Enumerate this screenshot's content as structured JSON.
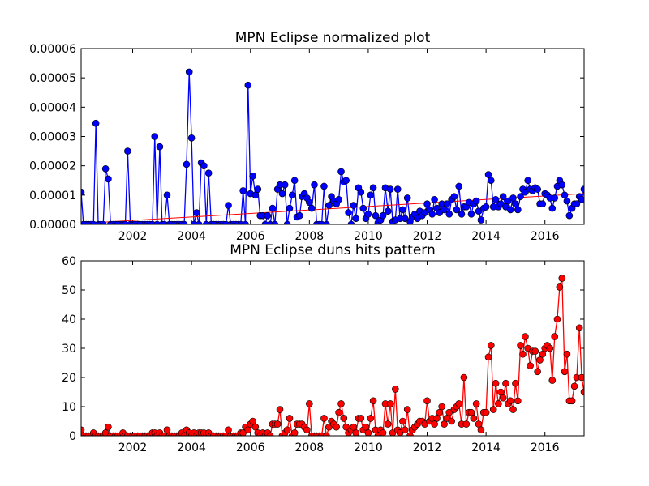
{
  "chart_data": [
    {
      "type": "line",
      "title": "MPN Eclipse normalized plot",
      "xlim": [
        2000.25,
        2017.33
      ],
      "xticks": [
        2002,
        2004,
        2006,
        2008,
        2010,
        2012,
        2014,
        2016
      ],
      "ylim": [
        0,
        6e-05
      ],
      "yticks": [
        {
          "value": 0,
          "label": "0.00000"
        },
        {
          "value": 1e-05,
          "label": "0.00001"
        },
        {
          "value": 2e-05,
          "label": "0.00002"
        },
        {
          "value": 3e-05,
          "label": "0.00003"
        },
        {
          "value": 4e-05,
          "label": "0.00004"
        },
        {
          "value": 5e-05,
          "label": "0.00005"
        },
        {
          "value": 6e-05,
          "label": "0.00006"
        }
      ],
      "x": [
        2000.25,
        2000.33,
        2000.42,
        2000.5,
        2000.58,
        2000.67,
        2000.75,
        2000.83,
        2000.92,
        2001,
        2001.08,
        2001.17,
        2001.25,
        2001.33,
        2001.42,
        2001.5,
        2001.58,
        2001.67,
        2001.75,
        2001.83,
        2001.92,
        2002,
        2002.08,
        2002.17,
        2002.25,
        2002.33,
        2002.42,
        2002.5,
        2002.58,
        2002.67,
        2002.75,
        2002.83,
        2002.92,
        2003,
        2003.08,
        2003.17,
        2003.25,
        2003.33,
        2003.42,
        2003.5,
        2003.58,
        2003.67,
        2003.75,
        2003.83,
        2003.92,
        2004,
        2004.08,
        2004.17,
        2004.25,
        2004.33,
        2004.42,
        2004.5,
        2004.58,
        2004.67,
        2004.75,
        2004.83,
        2004.92,
        2005,
        2005.08,
        2005.17,
        2005.25,
        2005.33,
        2005.42,
        2005.5,
        2005.58,
        2005.67,
        2005.75,
        2005.83,
        2005.92,
        2006,
        2006.08,
        2006.17,
        2006.25,
        2006.33,
        2006.42,
        2006.5,
        2006.58,
        2006.67,
        2006.75,
        2006.83,
        2006.92,
        2007,
        2007.08,
        2007.17,
        2007.25,
        2007.33,
        2007.42,
        2007.5,
        2007.58,
        2007.67,
        2007.75,
        2007.83,
        2007.92,
        2008,
        2008.08,
        2008.17,
        2008.25,
        2008.33,
        2008.42,
        2008.5,
        2008.58,
        2008.67,
        2008.75,
        2008.83,
        2008.92,
        2009,
        2009.08,
        2009.17,
        2009.25,
        2009.33,
        2009.42,
        2009.5,
        2009.58,
        2009.67,
        2009.75,
        2009.83,
        2009.92,
        2010,
        2010.08,
        2010.17,
        2010.25,
        2010.33,
        2010.42,
        2010.5,
        2010.58,
        2010.67,
        2010.75,
        2010.83,
        2010.92,
        2011,
        2011.08,
        2011.17,
        2011.25,
        2011.33,
        2011.42,
        2011.5,
        2011.58,
        2011.67,
        2011.75,
        2011.83,
        2011.92,
        2012,
        2012.08,
        2012.17,
        2012.25,
        2012.33,
        2012.42,
        2012.5,
        2012.58,
        2012.67,
        2012.75,
        2012.83,
        2012.92,
        2013,
        2013.08,
        2013.17,
        2013.25,
        2013.33,
        2013.42,
        2013.5,
        2013.58,
        2013.67,
        2013.75,
        2013.83,
        2013.92,
        2014,
        2014.08,
        2014.17,
        2014.25,
        2014.33,
        2014.42,
        2014.5,
        2014.58,
        2014.67,
        2014.75,
        2014.83,
        2014.92,
        2015,
        2015.08,
        2015.17,
        2015.25,
        2015.33,
        2015.42,
        2015.5,
        2015.58,
        2015.67,
        2015.75,
        2015.83,
        2015.92,
        2016,
        2016.08,
        2016.17,
        2016.25,
        2016.33,
        2016.42,
        2016.5,
        2016.58,
        2016.67,
        2016.75,
        2016.83,
        2016.92,
        2017,
        2017.08,
        2017.17,
        2017.25,
        2017.33
      ],
      "series": [
        {
          "color": "#0000ff",
          "values": [
            1.1e-05,
            0,
            0,
            0,
            0,
            0,
            3.45e-05,
            0,
            0,
            0,
            1.9e-05,
            1.55e-05,
            0,
            0,
            0,
            0,
            0,
            0,
            0,
            2.5e-05,
            0,
            0,
            0,
            0,
            0,
            0,
            0,
            0,
            0,
            0,
            3e-05,
            0,
            2.65e-05,
            0,
            0,
            1e-05,
            0,
            0,
            0,
            0,
            0,
            0,
            0,
            2.05e-05,
            5.2e-05,
            2.95e-05,
            0,
            4e-06,
            0,
            2.1e-05,
            2e-05,
            0,
            1.75e-05,
            0,
            0,
            0,
            0,
            0,
            0,
            0,
            6.5e-06,
            0,
            0,
            0,
            0,
            0,
            1.15e-05,
            0,
            4.75e-05,
            1.05e-05,
            1.65e-05,
            1e-05,
            1.2e-05,
            3e-06,
            3e-06,
            0,
            3e-06,
            0,
            5.5e-06,
            0,
            1.2e-05,
            1.35e-05,
            1.05e-05,
            1.35e-05,
            0,
            5.5e-06,
            1e-05,
            1.5e-05,
            2.5e-06,
            3e-06,
            9.5e-06,
            1.05e-05,
            9e-06,
            7.5e-06,
            5.5e-06,
            1.35e-05,
            0,
            0,
            0,
            1.3e-05,
            0,
            6.5e-06,
            9.5e-06,
            8e-06,
            7e-06,
            8.5e-06,
            1.8e-05,
            1.45e-05,
            1.5e-05,
            4e-06,
            0,
            6.5e-06,
            2e-06,
            1.25e-05,
            1.1e-05,
            5.5e-06,
            2e-06,
            3.5e-06,
            1e-05,
            1.25e-05,
            3e-06,
            5e-07,
            1.5e-06,
            3e-06,
            1.25e-05,
            4.5e-06,
            1.2e-05,
            1e-06,
            1.5e-06,
            1.2e-05,
            2e-06,
            5e-06,
            2e-06,
            9e-06,
            1e-06,
            2.5e-06,
            3.5e-06,
            2e-06,
            4.5e-06,
            3e-06,
            4e-06,
            7e-06,
            5e-06,
            3.5e-06,
            8.5e-06,
            5.5e-06,
            4e-06,
            7e-06,
            5e-06,
            7e-06,
            3.5e-06,
            8.5e-06,
            9.5e-06,
            5e-06,
            1.3e-05,
            3.5e-06,
            6e-06,
            6e-06,
            7.5e-06,
            3.5e-06,
            7e-06,
            8e-06,
            4.5e-06,
            1.5e-06,
            5.5e-06,
            6e-06,
            1.7e-05,
            1.5e-05,
            6e-06,
            8.5e-06,
            6e-06,
            7e-06,
            9.5e-06,
            6e-06,
            8e-06,
            5e-06,
            9e-06,
            7e-06,
            5e-06,
            9.5e-06,
            1.2e-05,
            1.1e-05,
            1.5e-05,
            1.2e-05,
            1.15e-05,
            1.25e-05,
            1.2e-05,
            7e-06,
            7e-06,
            1.05e-05,
            1e-05,
            9e-06,
            5.5e-06,
            9e-06,
            1.3e-05,
            1.5e-05,
            1.35e-05,
            1e-05,
            8e-06,
            3e-06,
            5.5e-06,
            7e-06,
            7e-06,
            9.5e-06,
            8.5e-06,
            1.2e-05
          ]
        }
      ],
      "trend": {
        "color": "#ff0000",
        "x": [
          2000.25,
          2017.33
        ],
        "values": [
          3e-07,
          1.05e-05
        ]
      }
    },
    {
      "type": "line",
      "title": "MPN Eclipse duns hits pattern",
      "xlim": [
        2000.25,
        2017.33
      ],
      "xticks": [
        2002,
        2004,
        2006,
        2008,
        2010,
        2012,
        2014,
        2016
      ],
      "ylim": [
        0,
        60
      ],
      "yticks": [
        0,
        10,
        20,
        30,
        40,
        50,
        60
      ],
      "x": [
        2000.25,
        2000.33,
        2000.42,
        2000.5,
        2000.58,
        2000.67,
        2000.75,
        2000.83,
        2000.92,
        2001,
        2001.08,
        2001.17,
        2001.25,
        2001.33,
        2001.42,
        2001.5,
        2001.58,
        2001.67,
        2001.75,
        2001.83,
        2001.92,
        2002,
        2002.08,
        2002.17,
        2002.25,
        2002.33,
        2002.42,
        2002.5,
        2002.58,
        2002.67,
        2002.75,
        2002.83,
        2002.92,
        2003,
        2003.08,
        2003.17,
        2003.25,
        2003.33,
        2003.42,
        2003.5,
        2003.58,
        2003.67,
        2003.75,
        2003.83,
        2003.92,
        2004,
        2004.08,
        2004.17,
        2004.25,
        2004.33,
        2004.42,
        2004.5,
        2004.58,
        2004.67,
        2004.75,
        2004.83,
        2004.92,
        2005,
        2005.08,
        2005.17,
        2005.25,
        2005.33,
        2005.42,
        2005.5,
        2005.58,
        2005.67,
        2005.75,
        2005.83,
        2005.92,
        2006,
        2006.08,
        2006.17,
        2006.25,
        2006.33,
        2006.42,
        2006.5,
        2006.58,
        2006.67,
        2006.75,
        2006.83,
        2006.92,
        2007,
        2007.08,
        2007.17,
        2007.25,
        2007.33,
        2007.42,
        2007.5,
        2007.58,
        2007.67,
        2007.75,
        2007.83,
        2007.92,
        2008,
        2008.08,
        2008.17,
        2008.25,
        2008.33,
        2008.42,
        2008.5,
        2008.58,
        2008.67,
        2008.75,
        2008.83,
        2008.92,
        2009,
        2009.08,
        2009.17,
        2009.25,
        2009.33,
        2009.42,
        2009.5,
        2009.58,
        2009.67,
        2009.75,
        2009.83,
        2009.92,
        2010,
        2010.08,
        2010.17,
        2010.25,
        2010.33,
        2010.42,
        2010.5,
        2010.58,
        2010.67,
        2010.75,
        2010.83,
        2010.92,
        2011,
        2011.08,
        2011.17,
        2011.25,
        2011.33,
        2011.42,
        2011.5,
        2011.58,
        2011.67,
        2011.75,
        2011.83,
        2011.92,
        2012,
        2012.08,
        2012.17,
        2012.25,
        2012.33,
        2012.42,
        2012.5,
        2012.58,
        2012.67,
        2012.75,
        2012.83,
        2012.92,
        2013,
        2013.08,
        2013.17,
        2013.25,
        2013.33,
        2013.42,
        2013.5,
        2013.58,
        2013.67,
        2013.75,
        2013.83,
        2013.92,
        2014,
        2014.08,
        2014.17,
        2014.25,
        2014.33,
        2014.42,
        2014.5,
        2014.58,
        2014.67,
        2014.75,
        2014.83,
        2014.92,
        2015,
        2015.08,
        2015.17,
        2015.25,
        2015.33,
        2015.42,
        2015.5,
        2015.58,
        2015.67,
        2015.75,
        2015.83,
        2015.92,
        2016,
        2016.08,
        2016.17,
        2016.25,
        2016.33,
        2016.42,
        2016.5,
        2016.58,
        2016.67,
        2016.75,
        2016.83,
        2016.92,
        2017,
        2017.08,
        2017.17,
        2017.25,
        2017.33
      ],
      "series": [
        {
          "color": "#ff0000",
          "values": [
            2,
            0,
            0,
            0,
            0,
            1,
            0,
            0,
            0,
            0,
            1,
            3,
            0,
            0,
            0,
            0,
            0,
            1,
            0,
            0,
            0,
            0,
            0,
            0,
            0,
            0,
            0,
            0,
            0,
            1,
            1,
            0,
            1,
            0,
            0,
            2,
            0,
            0,
            0,
            0,
            0,
            1,
            0,
            2,
            1,
            0,
            1,
            0,
            1,
            1,
            1,
            0,
            1,
            0,
            0,
            0,
            0,
            0,
            0,
            0,
            2,
            0,
            0,
            0,
            0,
            1,
            1,
            3,
            2,
            4,
            5,
            3,
            1,
            0,
            1,
            0,
            1,
            0,
            4,
            4,
            4,
            9,
            0,
            1,
            2,
            6,
            0,
            1,
            4,
            4,
            4,
            3,
            2,
            11,
            0,
            0,
            0,
            0,
            0,
            6,
            0,
            3,
            5,
            4,
            3,
            8,
            11,
            6,
            3,
            1,
            2,
            3,
            1,
            6,
            6,
            2,
            3,
            1,
            6,
            12,
            2,
            0,
            2,
            1,
            11,
            4,
            11,
            1,
            16,
            2,
            1,
            5,
            2,
            9,
            0,
            2,
            3,
            4,
            5,
            5,
            4,
            12,
            5,
            6,
            4,
            6,
            8,
            10,
            4,
            6,
            8,
            5,
            9,
            10,
            11,
            4,
            20,
            4,
            8,
            8,
            6,
            11,
            4,
            2,
            8,
            8,
            27,
            31,
            9,
            18,
            11,
            15,
            13,
            18,
            11,
            12,
            9,
            18,
            12,
            31,
            28,
            34,
            30,
            24,
            29,
            29,
            22,
            26,
            28,
            30,
            31,
            30,
            19,
            34,
            40,
            51,
            54,
            22,
            28,
            12,
            12,
            17,
            20,
            37,
            20,
            15
          ]
        }
      ]
    }
  ]
}
